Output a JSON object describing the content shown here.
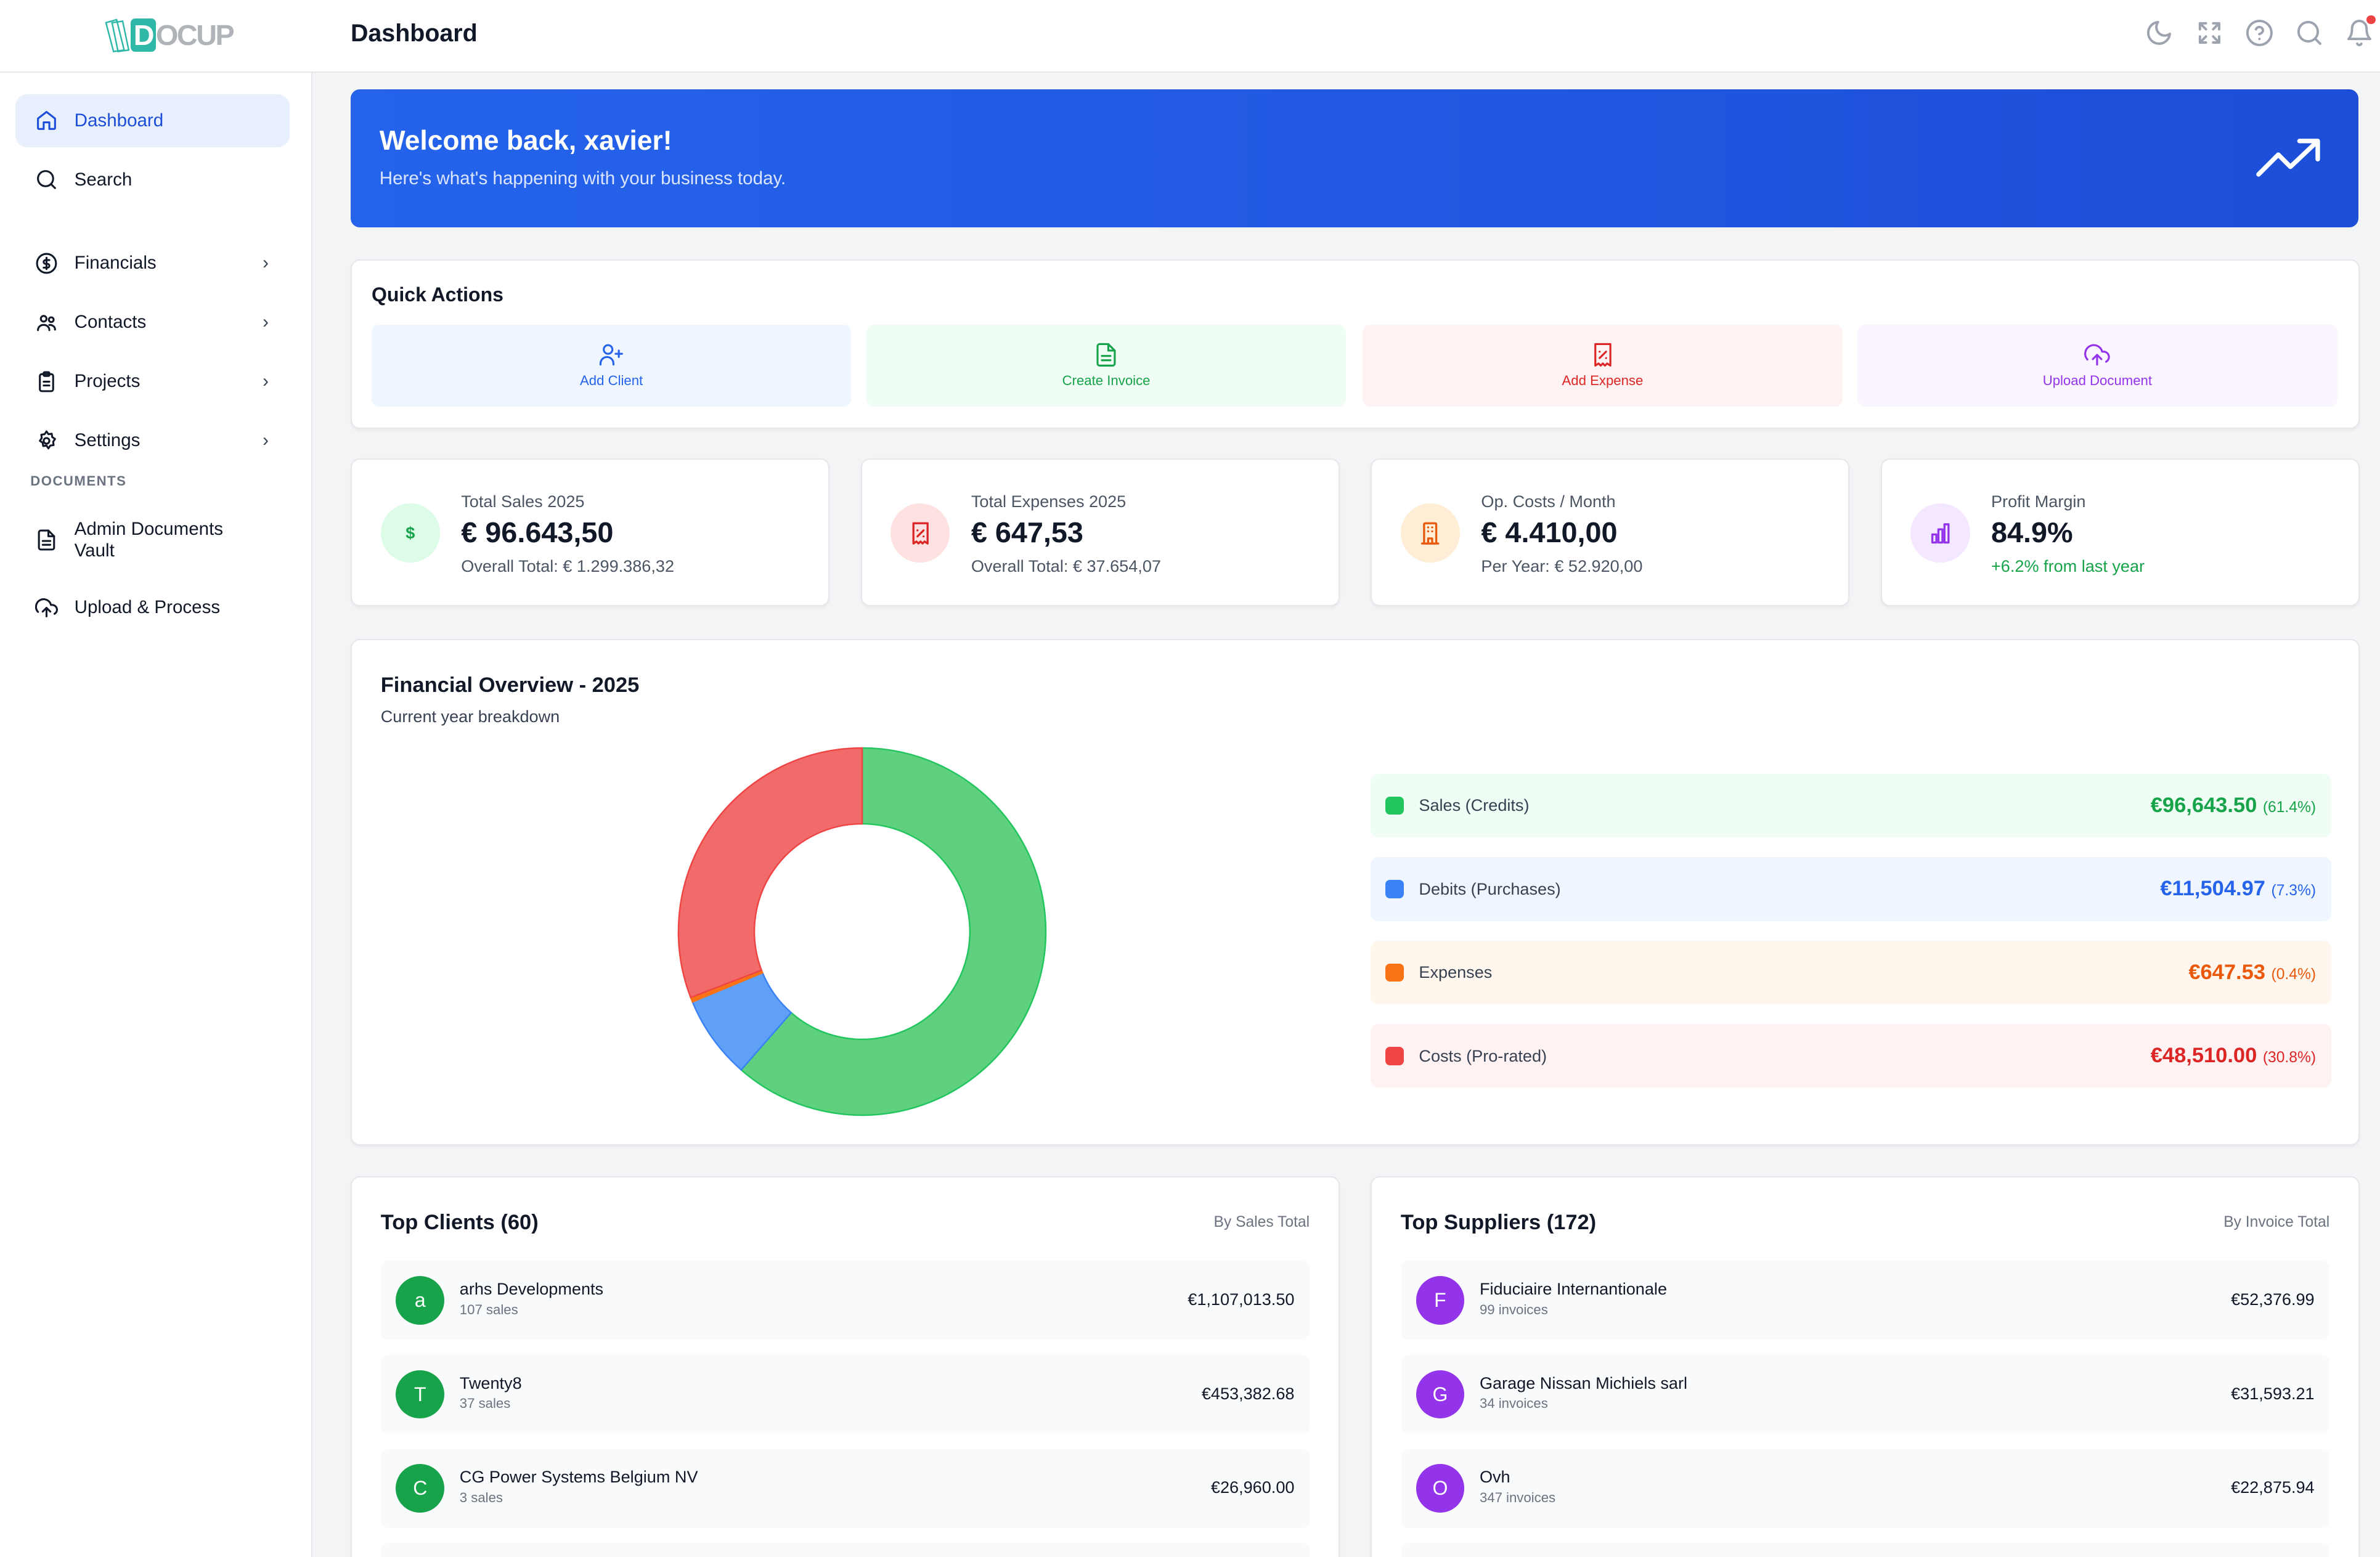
{
  "header": {
    "logo": "DOCUP",
    "title": "Dashboard",
    "icons": [
      "moon-icon",
      "fullscreen-icon",
      "help-icon",
      "search-icon",
      "bell-icon"
    ]
  },
  "sidebar": {
    "items": [
      {
        "label": "Dashboard",
        "icon": "home-icon",
        "active": true
      },
      {
        "label": "Search",
        "icon": "search-icon"
      },
      {
        "label": "Financials",
        "icon": "dollar-circle-icon",
        "chevron": true
      },
      {
        "label": "Contacts",
        "icon": "users-icon",
        "chevron": true
      },
      {
        "label": "Projects",
        "icon": "clipboard-icon",
        "chevron": true
      },
      {
        "label": "Settings",
        "icon": "gear-icon",
        "chevron": true
      }
    ],
    "section_label": "DOCUMENTS",
    "doc_items": [
      {
        "label": "Admin Documents Vault",
        "icon": "document-icon"
      },
      {
        "label": "Upload & Process",
        "icon": "upload-cloud-icon"
      }
    ]
  },
  "banner": {
    "title": "Welcome back, xavier!",
    "subtitle": "Here's what's happening with your business today.",
    "icon": "trending-up-icon"
  },
  "quick_actions": {
    "title": "Quick Actions",
    "items": [
      {
        "label": "Add Client",
        "color": "#2563eb",
        "bg": "#eff6ff",
        "icon": "user-plus-icon"
      },
      {
        "label": "Create Invoice",
        "color": "#16a34a",
        "bg": "#f0fdf4",
        "icon": "file-text-icon"
      },
      {
        "label": "Add Expense",
        "color": "#dc2626",
        "bg": "#fef2f2",
        "icon": "receipt-icon"
      },
      {
        "label": "Upload Document",
        "color": "#9333ea",
        "bg": "#faf5ff",
        "icon": "upload-cloud-icon"
      }
    ]
  },
  "stats": [
    {
      "label": "Total Sales 2025",
      "value": "€ 96.643,50",
      "sub": "Overall Total: € 1.299.386,32",
      "color": "#16a34a",
      "bg": "#dcfce7",
      "icon": "dollar-icon"
    },
    {
      "label": "Total Expenses 2025",
      "value": "€ 647,53",
      "sub": "Overall Total: € 37.654,07",
      "color": "#dc2626",
      "bg": "#fee2e2",
      "icon": "receipt-icon"
    },
    {
      "label": "Op. Costs / Month",
      "value": "€ 4.410,00",
      "sub": "Per Year: € 52.920,00",
      "color": "#ea580c",
      "bg": "#ffedd5",
      "icon": "building-icon"
    },
    {
      "label": "Profit Margin",
      "value": "84.9%",
      "sub": "+6.2% from last year",
      "color": "#9333ea",
      "bg": "#f3e8ff",
      "icon": "bar-chart-icon",
      "sub_color": "#16a34a"
    }
  ],
  "financial_overview": {
    "title": "Financial Overview - 2025",
    "subtitle": "Current year breakdown"
  },
  "chart_data": {
    "type": "pie",
    "donut": true,
    "categories": [
      "Sales (Credits)",
      "Debits (Purchases)",
      "Expenses",
      "Costs (Pro-rated)"
    ],
    "values": [
      96643.5,
      11504.97,
      647.53,
      48510.0
    ],
    "amounts": [
      "€96,643.50",
      "€11,504.97",
      "€647.53",
      "€48,510.00"
    ],
    "percents": [
      "(61.4%)",
      "(7.3%)",
      "(0.4%)",
      "(30.8%)"
    ],
    "colors": [
      "#22c55e",
      "#3b82f6",
      "#f97316",
      "#ef4444"
    ],
    "fills": [
      "#5fd07e",
      "#60a0f7",
      "#f97316",
      "#f26b6b"
    ],
    "text_colors": [
      "#16a34a",
      "#2563eb",
      "#ea580c",
      "#dc2626"
    ],
    "bgs": [
      "#f0fdf4",
      "#eff6ff",
      "#fff7ed",
      "#fef2f2"
    ],
    "legend": "right"
  },
  "top_clients": {
    "title": "Top Clients (60)",
    "note": "By Sales Total",
    "avatar_color": "#16a34a",
    "rows": [
      {
        "initial": "a",
        "name": "arhs Developments",
        "count": "107 sales",
        "amount": "€1,107,013.50"
      },
      {
        "initial": "T",
        "name": "Twenty8",
        "count": "37 sales",
        "amount": "€453,382.68"
      },
      {
        "initial": "C",
        "name": "CG Power Systems Belgium NV",
        "count": "3 sales",
        "amount": "€26,960.00"
      }
    ]
  },
  "top_suppliers": {
    "title": "Top Suppliers (172)",
    "note": "By Invoice Total",
    "avatar_color": "#9333ea",
    "rows": [
      {
        "initial": "F",
        "name": "Fiduciaire Internantionale",
        "count": "99 invoices",
        "amount": "€52,376.99"
      },
      {
        "initial": "G",
        "name": "Garage Nissan Michiels sarl",
        "count": "34 invoices",
        "amount": "€31,593.21"
      },
      {
        "initial": "O",
        "name": "Ovh",
        "count": "347 invoices",
        "amount": "€22,875.94"
      }
    ]
  }
}
